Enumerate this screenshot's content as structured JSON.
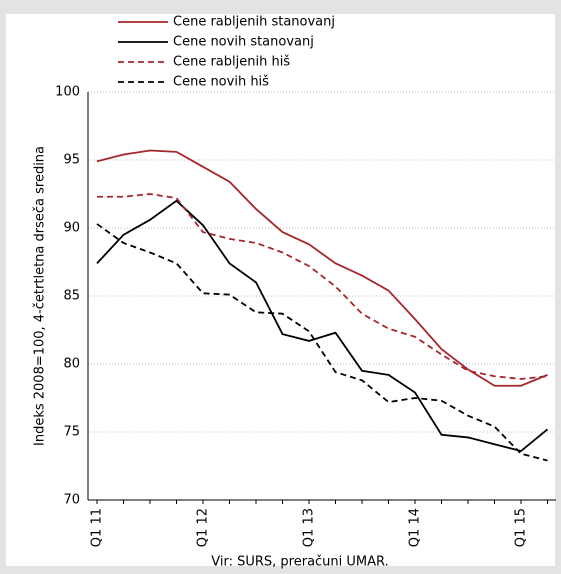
{
  "chart_data": {
    "type": "line",
    "y_label": "Indeks 2008=100, 4-četrtletna drseča sredina",
    "source": "Vir: SURS, preračuni UMAR.",
    "categories": [
      "Q1 11",
      null,
      null,
      null,
      "Q1 12",
      null,
      null,
      null,
      "Q1 13",
      null,
      null,
      null,
      "Q1 14",
      null,
      null,
      null,
      "Q1 15",
      null
    ],
    "series": [
      {
        "name": "Cene rabljenih stanovanj",
        "color": "#a6262b",
        "dashed": false,
        "values": [
          94.9,
          95.4,
          95.7,
          95.6,
          94.5,
          93.4,
          91.4,
          89.7,
          88.8,
          87.4,
          86.5,
          85.4,
          83.3,
          81.1,
          79.6,
          78.4,
          78.4,
          79.2
        ]
      },
      {
        "name": "Cene novih stanovanj",
        "color": "#000000",
        "dashed": false,
        "values": [
          87.4,
          89.5,
          90.6,
          92.0,
          90.2,
          87.4,
          86.0,
          82.2,
          81.7,
          82.3,
          79.5,
          79.2,
          77.9,
          74.8,
          74.6,
          74.1,
          73.6,
          75.2
        ]
      },
      {
        "name": "Cene rabljenih hiš",
        "color": "#a6262b",
        "dashed": true,
        "values": [
          92.3,
          92.3,
          92.5,
          92.2,
          89.7,
          89.2,
          88.9,
          88.2,
          87.2,
          85.7,
          83.7,
          82.6,
          82.0,
          80.7,
          79.5,
          79.1,
          78.9,
          79.1
        ]
      },
      {
        "name": "Cene novih hiš",
        "color": "#000000",
        "dashed": true,
        "values": [
          90.3,
          88.9,
          88.2,
          87.4,
          85.2,
          85.1,
          83.8,
          83.7,
          82.4,
          79.4,
          78.8,
          77.2,
          77.5,
          77.3,
          76.2,
          75.4,
          73.4,
          72.9
        ]
      }
    ],
    "ylim": [
      70,
      100
    ],
    "yticks": [
      70,
      75,
      80,
      85,
      90,
      95,
      100
    ],
    "grid": true
  }
}
